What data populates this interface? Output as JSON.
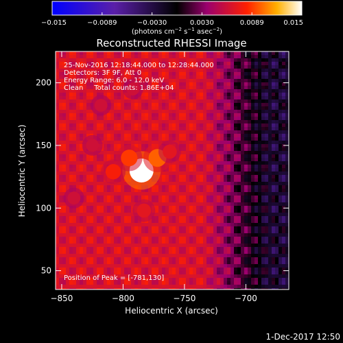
{
  "chart_data": {
    "type": "heatmap",
    "title": "Reconstructed RHESSI Image",
    "xlabel": "Heliocentric X (arcsec)",
    "ylabel": "Heliocentric Y (arcsec)",
    "xlim": [
      -855,
      -665
    ],
    "ylim": [
      35,
      225
    ],
    "x_ticks": [
      -850,
      -800,
      -750,
      -700
    ],
    "y_ticks": [
      50,
      100,
      150,
      200
    ],
    "colorbar": {
      "range": [
        -0.015,
        0.015
      ],
      "ticks": [
        "−0.015",
        "−0.0089",
        "−0.0030",
        "0.0030",
        "0.0089",
        "0.015"
      ],
      "label_prefix": "(photons cm",
      "label_exp1": "−2",
      "label_mid": " s",
      "label_exp2": "−1",
      "label_mid2": " asec",
      "label_exp3": "−2",
      "label_suffix": ")"
    },
    "info_lines": [
      "25-Nov-2016 12:18:44.000 to 12:28:44.000",
      "Detectors: 3F 9F, Att 0",
      "Energy Range: 6.0 - 12.0 keV",
      "Clean     Total counts: 1.86E+04"
    ],
    "peak_label": "Position of Peak = [-781,130]",
    "peak_position": [
      -781,
      130
    ],
    "sources": [
      {
        "x": -785,
        "y": 130,
        "value": 0.015
      },
      {
        "x": -772,
        "y": 140,
        "value": 0.01
      },
      {
        "x": -795,
        "y": 140,
        "value": 0.009
      },
      {
        "x": -808,
        "y": 129,
        "value": 0.008
      },
      {
        "x": -783,
        "y": 98,
        "value": 0.007
      },
      {
        "x": -762,
        "y": 145,
        "value": 0.007
      },
      {
        "x": -840,
        "y": 108,
        "value": 0.006
      },
      {
        "x": -825,
        "y": 150,
        "value": 0.006
      },
      {
        "x": -818,
        "y": 182,
        "value": 0.006
      },
      {
        "x": -792,
        "y": 195,
        "value": 0.006
      }
    ]
  },
  "footer": {
    "date": "1-Dec-2017 12:50"
  }
}
